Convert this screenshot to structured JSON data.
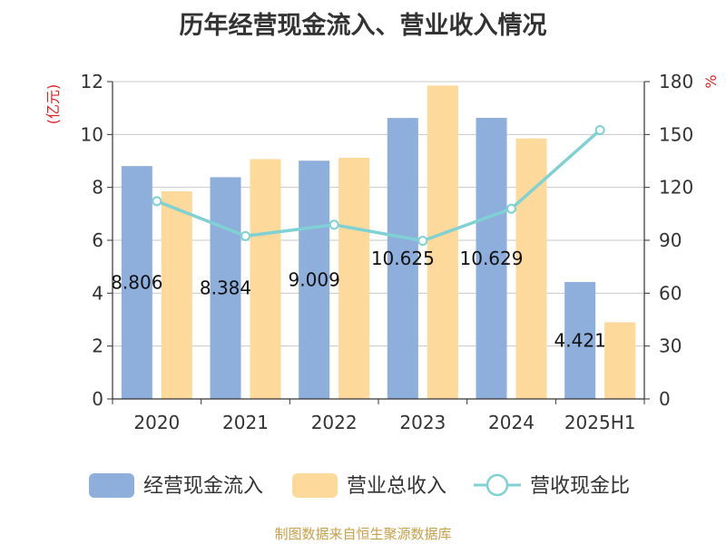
{
  "chart_data": {
    "type": "bar",
    "title": "历年经营现金流入、营业收入情况",
    "source": "制图数据来自恒生聚源数据库",
    "categories": [
      "2020",
      "2021",
      "2022",
      "2023",
      "2024",
      "2025H1"
    ],
    "series": [
      {
        "name": "经营现金流入",
        "kind": "bar",
        "axis": "left",
        "color": "#8eaedb",
        "values": [
          8.806,
          8.384,
          9.009,
          10.625,
          10.629,
          4.421
        ],
        "labels": [
          "8.806",
          "8.384",
          "9.009",
          "10.625",
          "10.629",
          "4.421"
        ]
      },
      {
        "name": "营业总收入",
        "kind": "bar",
        "axis": "left",
        "color": "#fdd99b",
        "values": [
          7.85,
          9.07,
          9.12,
          11.85,
          9.85,
          2.9
        ]
      },
      {
        "name": "营收现金比",
        "kind": "line",
        "axis": "right",
        "color": "#7fd1d4",
        "values": [
          112.2,
          92.4,
          98.8,
          89.7,
          107.9,
          152.5
        ]
      }
    ],
    "y_left": {
      "label": "(亿元)",
      "ticks": [
        0,
        2,
        4,
        6,
        8,
        10,
        12
      ],
      "min": 0,
      "max": 12
    },
    "y_right": {
      "label": "%",
      "ticks": [
        0,
        30,
        60,
        90,
        120,
        150,
        180
      ],
      "min": 0,
      "max": 180
    },
    "grid": true,
    "legend_position": "bottom"
  }
}
